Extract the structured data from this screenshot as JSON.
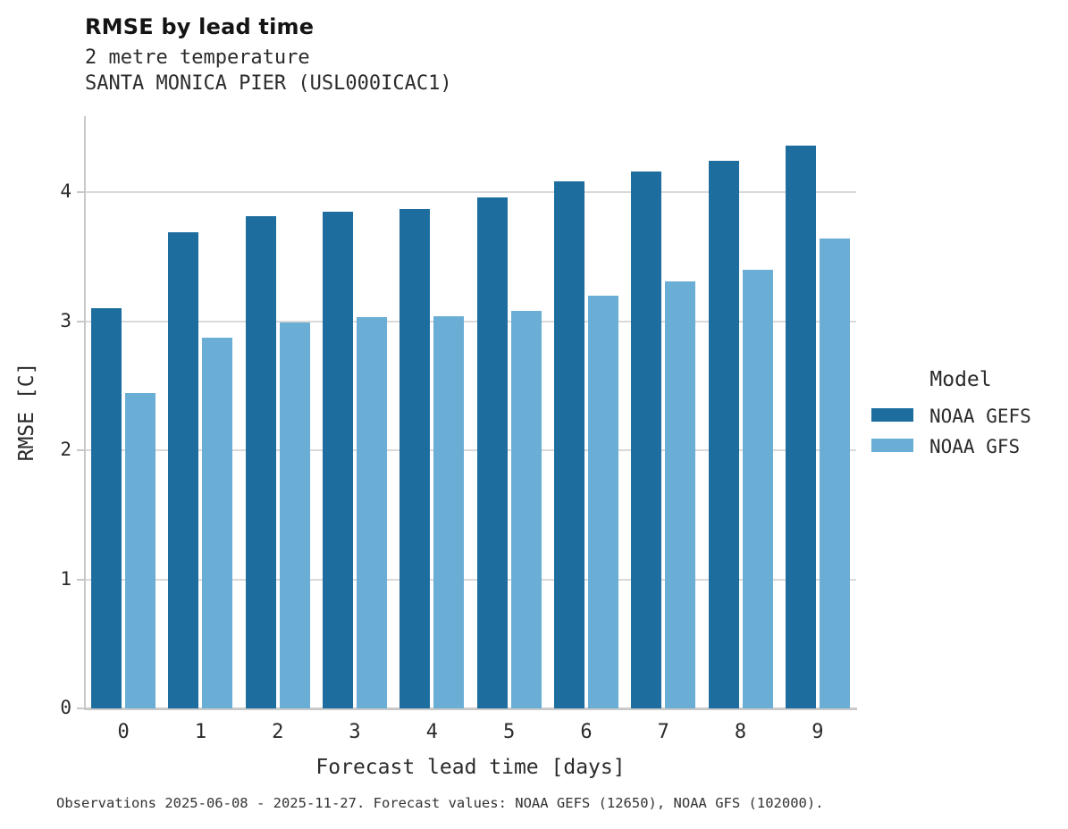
{
  "header": {
    "title": "RMSE by lead time",
    "subtitle_variable": "2 metre temperature",
    "subtitle_station": "SANTA MONICA PIER (USL000ICAC1)"
  },
  "caption": "Observations 2025-06-08 - 2025-11-27. Forecast values: NOAA GEFS (12650), NOAA GFS (102000).",
  "legend": {
    "title": "Model",
    "entries": [
      {
        "label": "NOAA GEFS",
        "color": "#1d6e9e"
      },
      {
        "label": "NOAA GFS",
        "color": "#6aaed6"
      }
    ]
  },
  "colors": {
    "noaa_gefs": "#1d6e9e",
    "noaa_gfs": "#6aaed6",
    "gridline": "#d9d9d9",
    "axis_spine": "#c9c9c9"
  },
  "chart_data": {
    "type": "bar",
    "title": "RMSE by lead time",
    "subtitle": [
      "2 metre temperature",
      "SANTA MONICA PIER (USL000ICAC1)"
    ],
    "xlabel": "Forecast lead time [days]",
    "ylabel": "RMSE [C]",
    "categories": [
      0,
      1,
      2,
      3,
      4,
      5,
      6,
      7,
      8,
      9
    ],
    "series": [
      {
        "name": "NOAA GEFS",
        "color": "#1d6e9e",
        "values": [
          3.1,
          3.69,
          3.81,
          3.85,
          3.87,
          3.96,
          4.08,
          4.16,
          4.24,
          4.36
        ]
      },
      {
        "name": "NOAA GFS",
        "color": "#6aaed6",
        "values": [
          2.44,
          2.87,
          2.99,
          3.03,
          3.04,
          3.08,
          3.2,
          3.31,
          3.4,
          3.64
        ]
      }
    ],
    "yticks": [
      0,
      1,
      2,
      3,
      4
    ],
    "ylim": [
      0,
      4.6
    ],
    "grid": "horizontal",
    "legend_title": "Model",
    "legend_position": "right"
  }
}
